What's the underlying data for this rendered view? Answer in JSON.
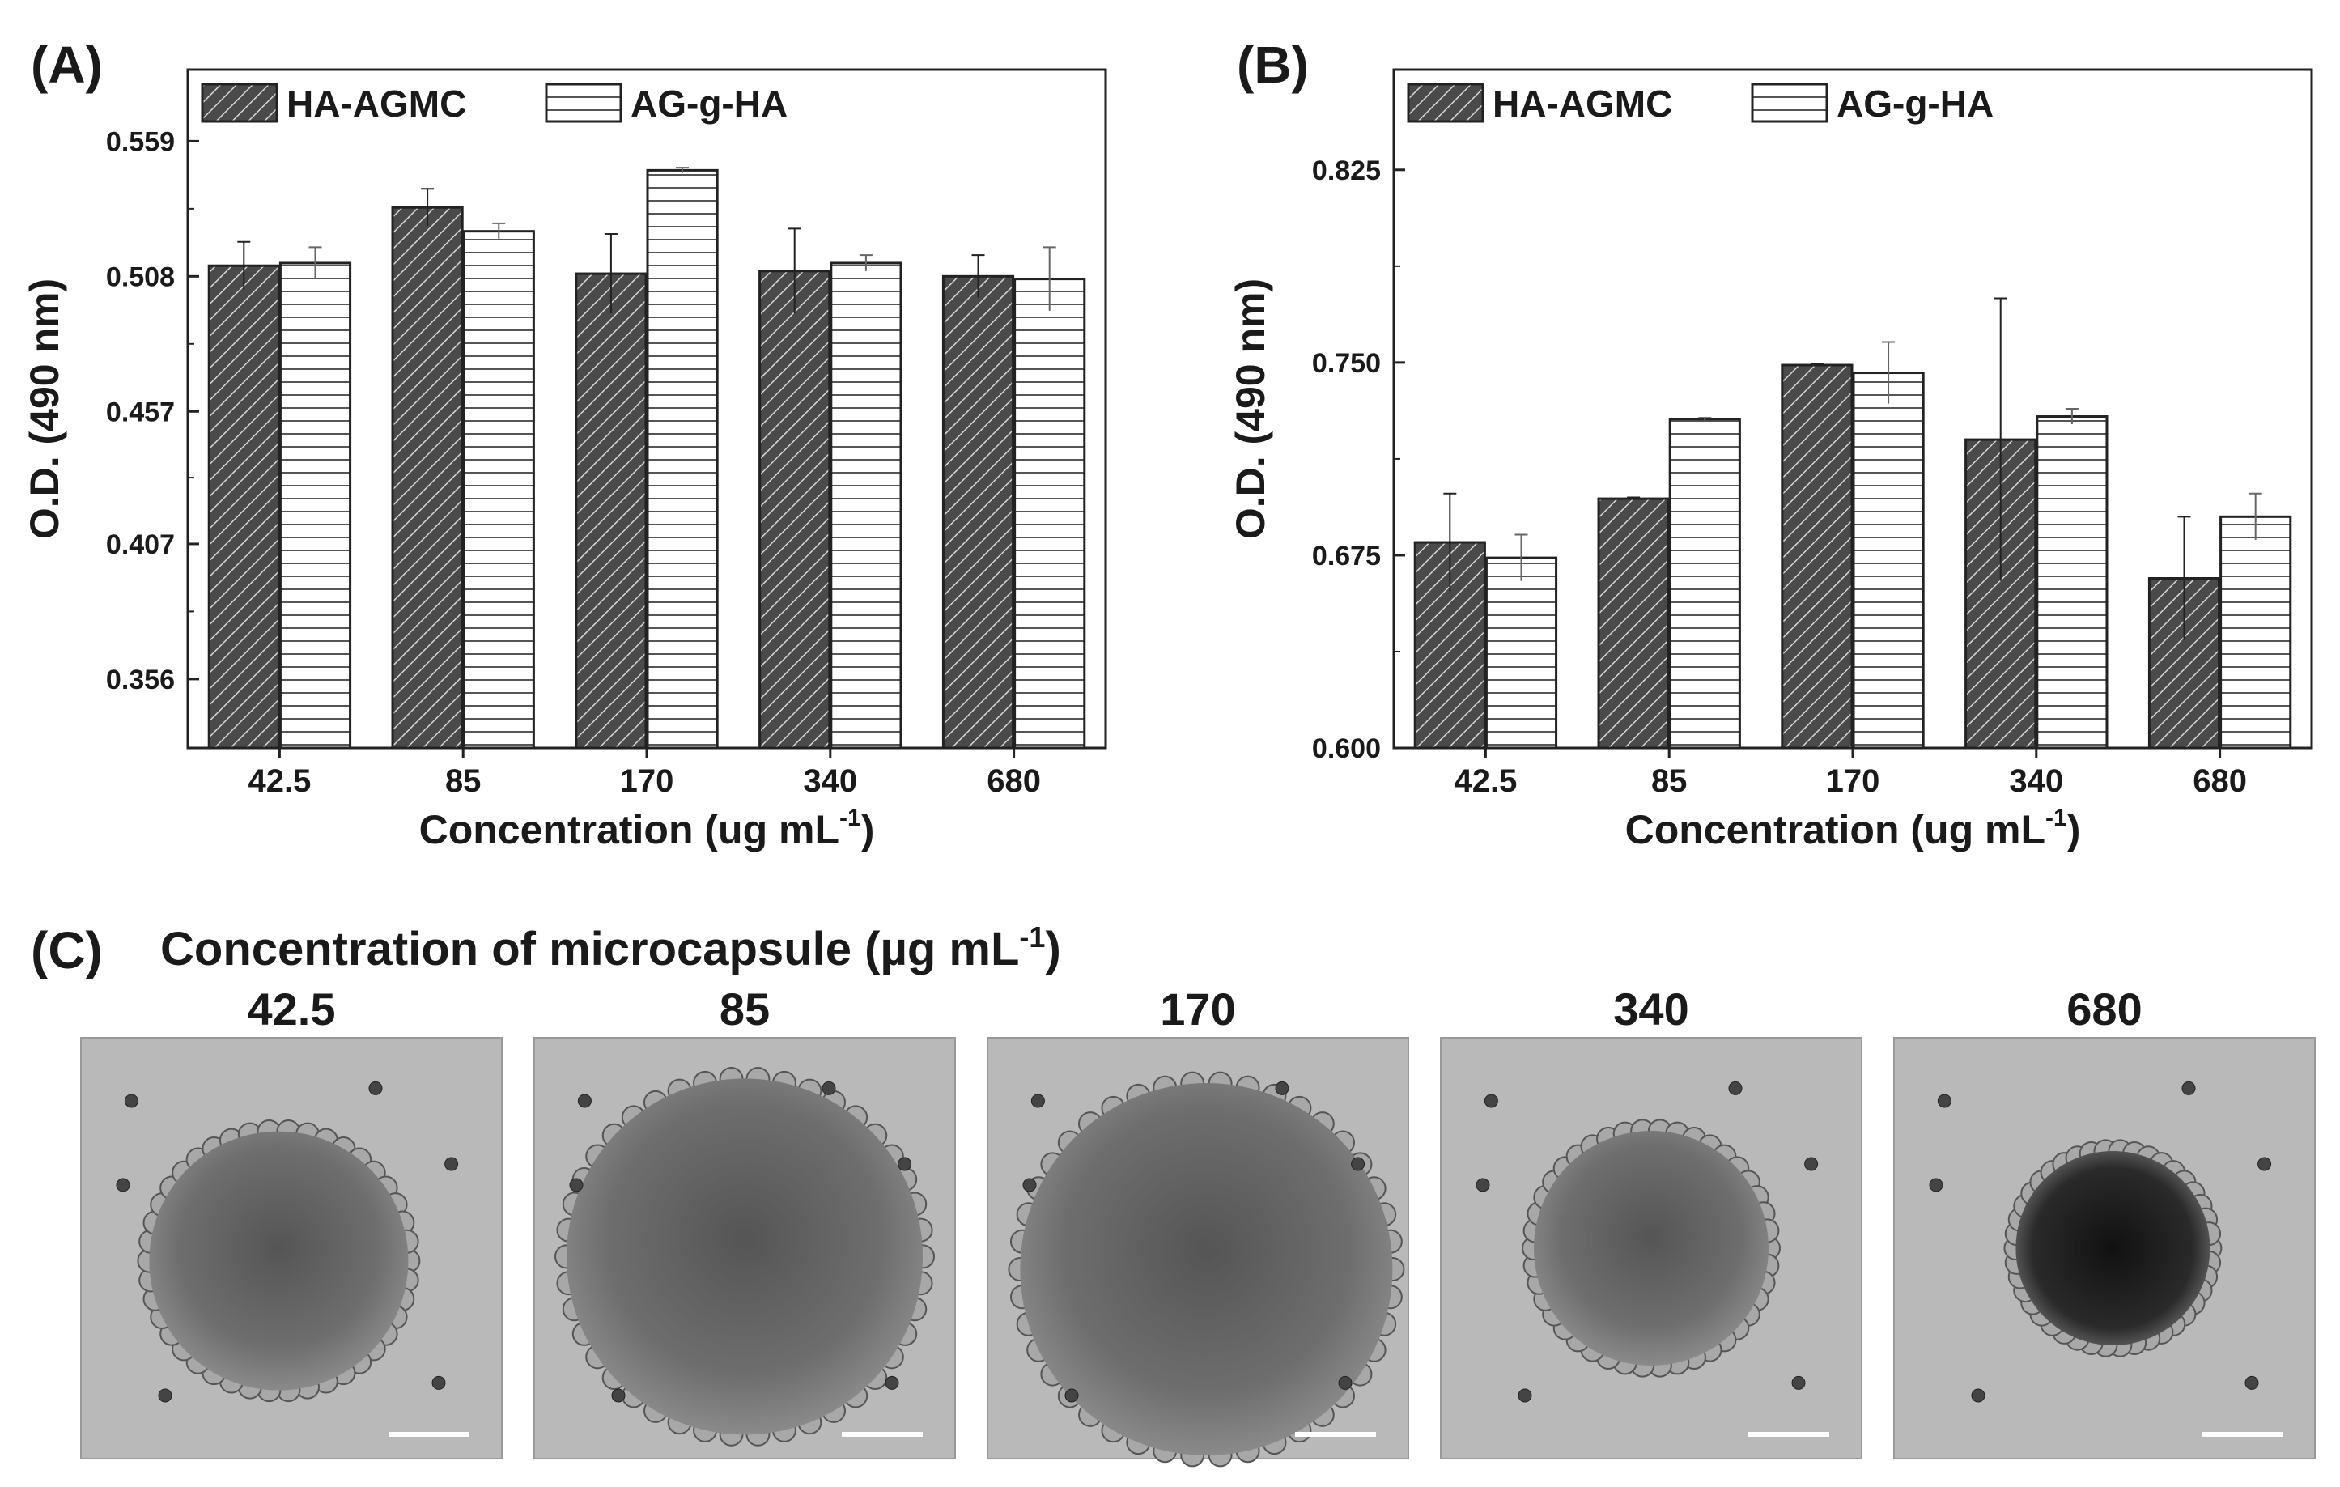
{
  "panels": {
    "a_label": "(A)",
    "b_label": "(B)",
    "c_label": "(C)"
  },
  "chart_data": [
    {
      "type": "bar",
      "panel": "(A)",
      "categories": [
        "42.5",
        "85",
        "170",
        "340",
        "680"
      ],
      "series": [
        {
          "name": "HA-AGMC",
          "values": [
            0.512,
            0.534,
            0.509,
            0.51,
            0.508
          ],
          "errors": [
            0.009,
            0.007,
            0.015,
            0.016,
            0.008
          ]
        },
        {
          "name": "AG-g-HA",
          "values": [
            0.513,
            0.525,
            0.548,
            0.513,
            0.507
          ],
          "errors": [
            0.006,
            0.003,
            0.001,
            0.003,
            0.012
          ]
        }
      ],
      "ylabel": "O.D. (490 nm)",
      "xlabel": "Concentration (ug mL",
      "xlabel_sup": "-1",
      "xlabel_end": ")",
      "yticks": [
        "0.356",
        "0.407",
        "0.457",
        "0.508",
        "0.559"
      ],
      "ylim": [
        0.33,
        0.586
      ],
      "legend": "top-left",
      "grid": false
    },
    {
      "type": "bar",
      "panel": "(B)",
      "categories": [
        "42.5",
        "85",
        "170",
        "340",
        "680"
      ],
      "series": [
        {
          "name": "HA-AGMC",
          "values": [
            0.68,
            0.697,
            0.749,
            0.72,
            0.666
          ],
          "errors": [
            0.019,
            0.0005,
            0.0005,
            0.055,
            0.024
          ]
        },
        {
          "name": "AG-g-HA",
          "values": [
            0.674,
            0.728,
            0.746,
            0.729,
            0.69
          ],
          "errors": [
            0.009,
            0.0005,
            0.012,
            0.003,
            0.009
          ]
        }
      ],
      "ylabel": "O.D. (490 nm)",
      "xlabel": "Concentration (ug mL",
      "xlabel_sup": "-1",
      "xlabel_end": ")",
      "yticks": [
        "0.600",
        "0.675",
        "0.750",
        "0.825"
      ],
      "ylim": [
        0.6,
        0.864
      ],
      "legend": "top-left",
      "grid": false
    }
  ],
  "micrographs": {
    "title": "Concentration of microcapsule (µg mL",
    "title_sup": "-1",
    "title_end": ")",
    "labels": [
      "42.5",
      "85",
      "170",
      "340",
      "680"
    ]
  }
}
